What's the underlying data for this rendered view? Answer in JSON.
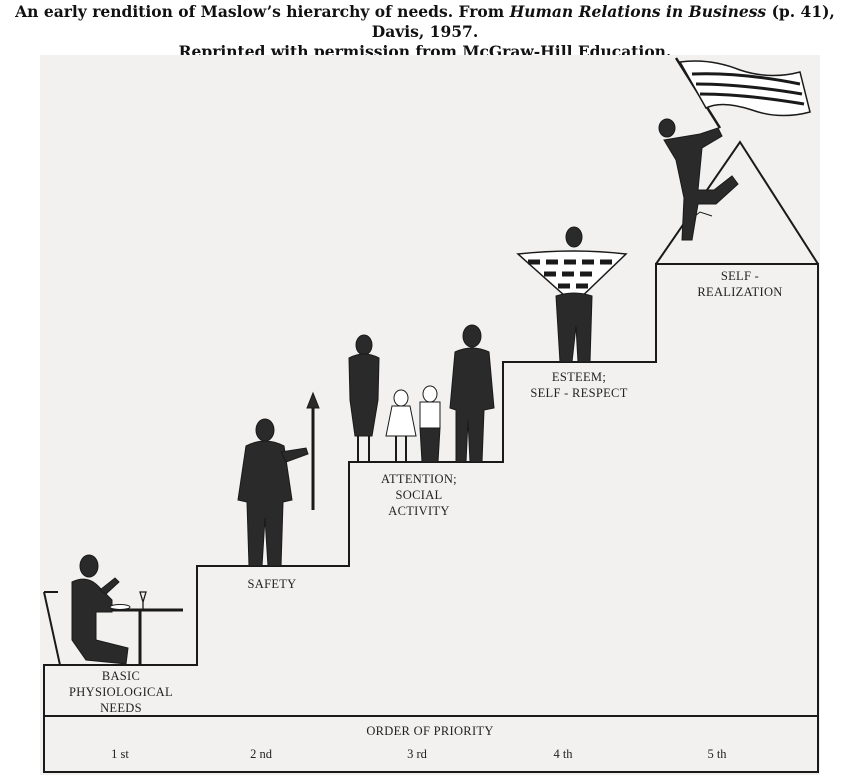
{
  "caption": {
    "line1_prefix": "An early rendition of Maslow’s hierarchy of needs. From ",
    "book_title": "Human Relations in Business",
    "line1_suffix": " (p. 41), Davis, 1957.",
    "line2": "Reprinted with permission from McGraw-Hill Education."
  },
  "steps": [
    {
      "label": "BASIC\nPHYSIOLOGICAL\nNEEDS",
      "rank": "1 st",
      "figure": "diner-figure"
    },
    {
      "label": "SAFETY",
      "rank": "2 nd",
      "figure": "spear-holder-figure"
    },
    {
      "label": "ATTENTION;\nSOCIAL\nACTIVITY",
      "rank": "3 rd",
      "figure": "family-figure"
    },
    {
      "label": "ESTEEM;\nSELF - RESPECT",
      "rank": "4 th",
      "figure": "banner-holder-figure"
    },
    {
      "label": "SELF -\nREALIZATION",
      "rank": "5 th",
      "figure": "flag-climber-figure"
    }
  ],
  "footer": {
    "order_label": "ORDER OF PRIORITY"
  },
  "colors": {
    "ink": "#1a1a1a",
    "panel": "#f2f1ef",
    "figure": "#2a2a2a"
  }
}
